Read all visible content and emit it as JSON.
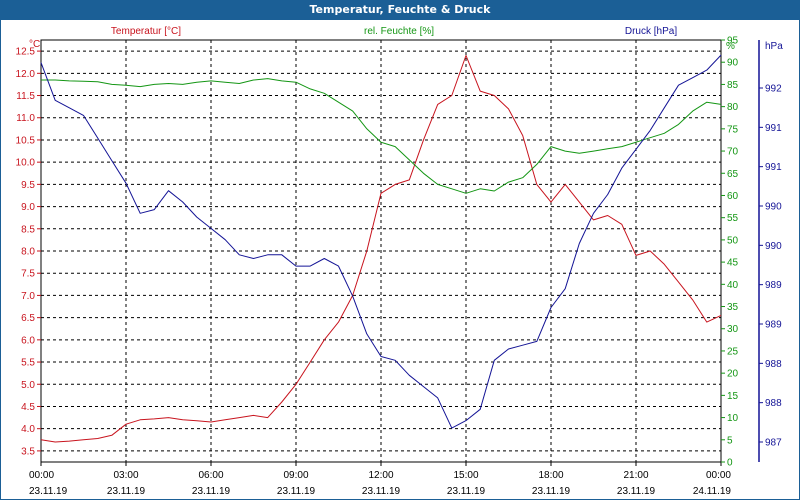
{
  "window": {
    "title": "Temperatur, Feuchte & Druck"
  },
  "colors": {
    "temp": "#c8141e",
    "hum": "#149614",
    "press": "#141496",
    "titlebar": "#1b5f96"
  },
  "chart_data": {
    "type": "line",
    "title": "Temperatur, Feuchte & Druck",
    "grid": true,
    "x_ticks": [
      {
        "time": "00:00",
        "date": "23.11.19"
      },
      {
        "time": "03:00",
        "date": "23.11.19"
      },
      {
        "time": "06:00",
        "date": "23.11.19"
      },
      {
        "time": "09:00",
        "date": "23.11.19"
      },
      {
        "time": "12:00",
        "date": "23.11.19"
      },
      {
        "time": "15:00",
        "date": "23.11.19"
      },
      {
        "time": "18:00",
        "date": "23.11.19"
      },
      {
        "time": "21:00",
        "date": "23.11.19"
      },
      {
        "time": "00:00",
        "date": "24.11.19"
      }
    ],
    "xlim_hours": [
      0,
      24
    ],
    "axes": {
      "temp": {
        "label": "Temperatur [°C]",
        "unit": "°C",
        "lim": [
          3.25,
          12.75
        ],
        "ticks": [
          "3.5",
          "4.0",
          "4.5",
          "5.0",
          "5.5",
          "6.0",
          "6.5",
          "7.0",
          "7.5",
          "8.0",
          "8.5",
          "9.0",
          "9.5",
          "10.0",
          "10.5",
          "11.0",
          "11.5",
          "12.0",
          "12.5"
        ]
      },
      "hum": {
        "label": "rel. Feuchte [%]",
        "unit": "%",
        "lim": [
          0,
          95
        ],
        "ticks": [
          "0",
          "5",
          "10",
          "15",
          "20",
          "25",
          "30",
          "35",
          "40",
          "45",
          "50",
          "55",
          "60",
          "65",
          "70",
          "75",
          "80",
          "85",
          "90",
          "95"
        ]
      },
      "press": {
        "label": "Druck [hPa]",
        "unit": "hPa",
        "lim": [
          986.6,
          992.2
        ],
        "ticks": [
          "987",
          "988",
          "988",
          "989",
          "989",
          "990",
          "990",
          "991",
          "991",
          "992"
        ]
      }
    },
    "series": [
      {
        "name": "Temperatur [°C]",
        "axis": "temp",
        "x": [
          0,
          0.5,
          1,
          1.5,
          2,
          2.5,
          3,
          3.5,
          4,
          4.5,
          5,
          5.5,
          6,
          6.5,
          7,
          7.5,
          8,
          8.5,
          9,
          9.5,
          10,
          10.5,
          11,
          11.5,
          12,
          12.5,
          13,
          13.5,
          14,
          14.5,
          15,
          15.5,
          16,
          16.5,
          17,
          17.5,
          18,
          18.5,
          19,
          19.5,
          20,
          20.5,
          21,
          21.5,
          22,
          22.5,
          23,
          23.5,
          24
        ],
        "y": [
          3.75,
          3.7,
          3.72,
          3.75,
          3.78,
          3.85,
          4.1,
          4.2,
          4.22,
          4.25,
          4.2,
          4.18,
          4.15,
          4.2,
          4.25,
          4.3,
          4.25,
          4.6,
          5.0,
          5.5,
          6.0,
          6.4,
          7.0,
          8.0,
          9.3,
          9.5,
          9.6,
          10.5,
          11.3,
          11.5,
          12.4,
          11.6,
          11.5,
          11.2,
          10.6,
          9.5,
          9.1,
          9.5,
          9.1,
          8.7,
          8.8,
          8.6,
          7.9,
          8.0,
          7.7,
          7.3,
          6.9,
          6.4,
          6.55
        ]
      },
      {
        "name": "rel. Feuchte [%]",
        "axis": "hum",
        "x": [
          0,
          0.5,
          1,
          1.5,
          2,
          2.5,
          3,
          3.5,
          4,
          4.5,
          5,
          5.5,
          6,
          6.5,
          7,
          7.5,
          8,
          8.5,
          9,
          9.5,
          10,
          10.5,
          11,
          11.5,
          12,
          12.5,
          13,
          13.5,
          14,
          14.5,
          15,
          15.5,
          16,
          16.5,
          17,
          17.5,
          18,
          18.5,
          19,
          19.5,
          20,
          20.5,
          21,
          21.5,
          22,
          22.5,
          23,
          23.5,
          24
        ],
        "y": [
          86,
          86,
          85.8,
          85.7,
          85.6,
          85,
          84.8,
          84.5,
          85,
          85.2,
          85,
          85.5,
          85.8,
          85.5,
          85.2,
          86,
          86.3,
          85.8,
          85.5,
          84,
          83,
          81,
          79,
          75,
          72,
          71,
          68,
          65,
          62.5,
          61.5,
          60.5,
          61.5,
          61,
          63,
          64,
          67,
          71,
          70,
          69.5,
          70,
          70.5,
          71,
          72,
          73,
          74,
          76,
          79,
          81,
          80.5
        ]
      },
      {
        "name": "Druck [hPa]",
        "axis": "press",
        "x": [
          0,
          0.5,
          1,
          1.5,
          2,
          2.5,
          3,
          3.5,
          4,
          4.5,
          5,
          5.5,
          6,
          6.5,
          7,
          7.5,
          8,
          8.5,
          9,
          9.5,
          10,
          10.5,
          11,
          11.5,
          12,
          12.5,
          13,
          13.5,
          14,
          14.5,
          15,
          15.5,
          16,
          16.5,
          17,
          17.5,
          18,
          18.5,
          19,
          19.5,
          20,
          20.5,
          21,
          21.5,
          22,
          22.5,
          23,
          23.5,
          24
        ],
        "y": [
          991.9,
          991.4,
          991.3,
          991.2,
          990.9,
          990.6,
          990.3,
          989.9,
          989.95,
          990.2,
          990.05,
          989.85,
          989.7,
          989.55,
          989.35,
          989.3,
          989.35,
          989.35,
          989.2,
          989.2,
          989.3,
          989.2,
          988.8,
          988.3,
          988.0,
          987.95,
          987.75,
          987.6,
          987.45,
          987.05,
          987.15,
          987.3,
          987.95,
          988.1,
          988.15,
          988.2,
          988.65,
          988.9,
          989.5,
          989.9,
          990.15,
          990.5,
          990.75,
          991.0,
          991.3,
          991.6,
          991.7,
          991.8,
          992.0
        ]
      }
    ]
  }
}
